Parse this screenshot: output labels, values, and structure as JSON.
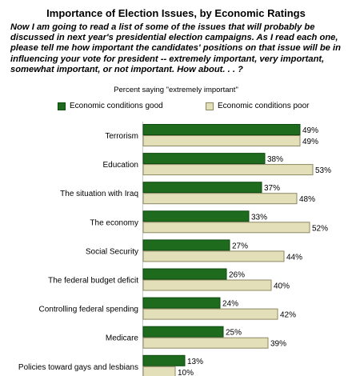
{
  "header": {
    "title": "Importance of Election Issues, by Economic Ratings",
    "question": "Now I am going to read a list of some of the issues that will probably be discussed in next year's presidential election campaigns. As I read each one, please tell me how important the candidates' positions on that issue will be in influencing your vote for president -- extremely important, very important, somewhat important, or not important. How about. . . ?",
    "subtitle": "Percent saying \"extremely important\""
  },
  "colors": {
    "good": "#1e6b1e",
    "good_border": "#0d4a0d",
    "poor": "#e3dfb8",
    "poor_border": "#8c8862"
  },
  "chart_data": {
    "type": "bar",
    "orientation": "horizontal",
    "title": "Importance of Election Issues, by Economic Ratings",
    "ylabel": "Percent saying \"extremely important\"",
    "value_suffix": "%",
    "categories": [
      "Terrorism",
      "Education",
      "The situation with Iraq",
      "The economy",
      "Social Security",
      "The federal budget deficit",
      "Controlling federal spending",
      "Medicare",
      "Policies toward gays and lesbians"
    ],
    "series": [
      {
        "name": "Economic conditions good",
        "values": [
          49,
          38,
          37,
          33,
          27,
          26,
          24,
          25,
          13
        ]
      },
      {
        "name": "Economic conditions poor",
        "values": [
          49,
          53,
          48,
          52,
          44,
          40,
          42,
          39,
          10
        ]
      }
    ],
    "xlim": [
      0,
      53
    ],
    "legend": "top",
    "grid": false
  }
}
